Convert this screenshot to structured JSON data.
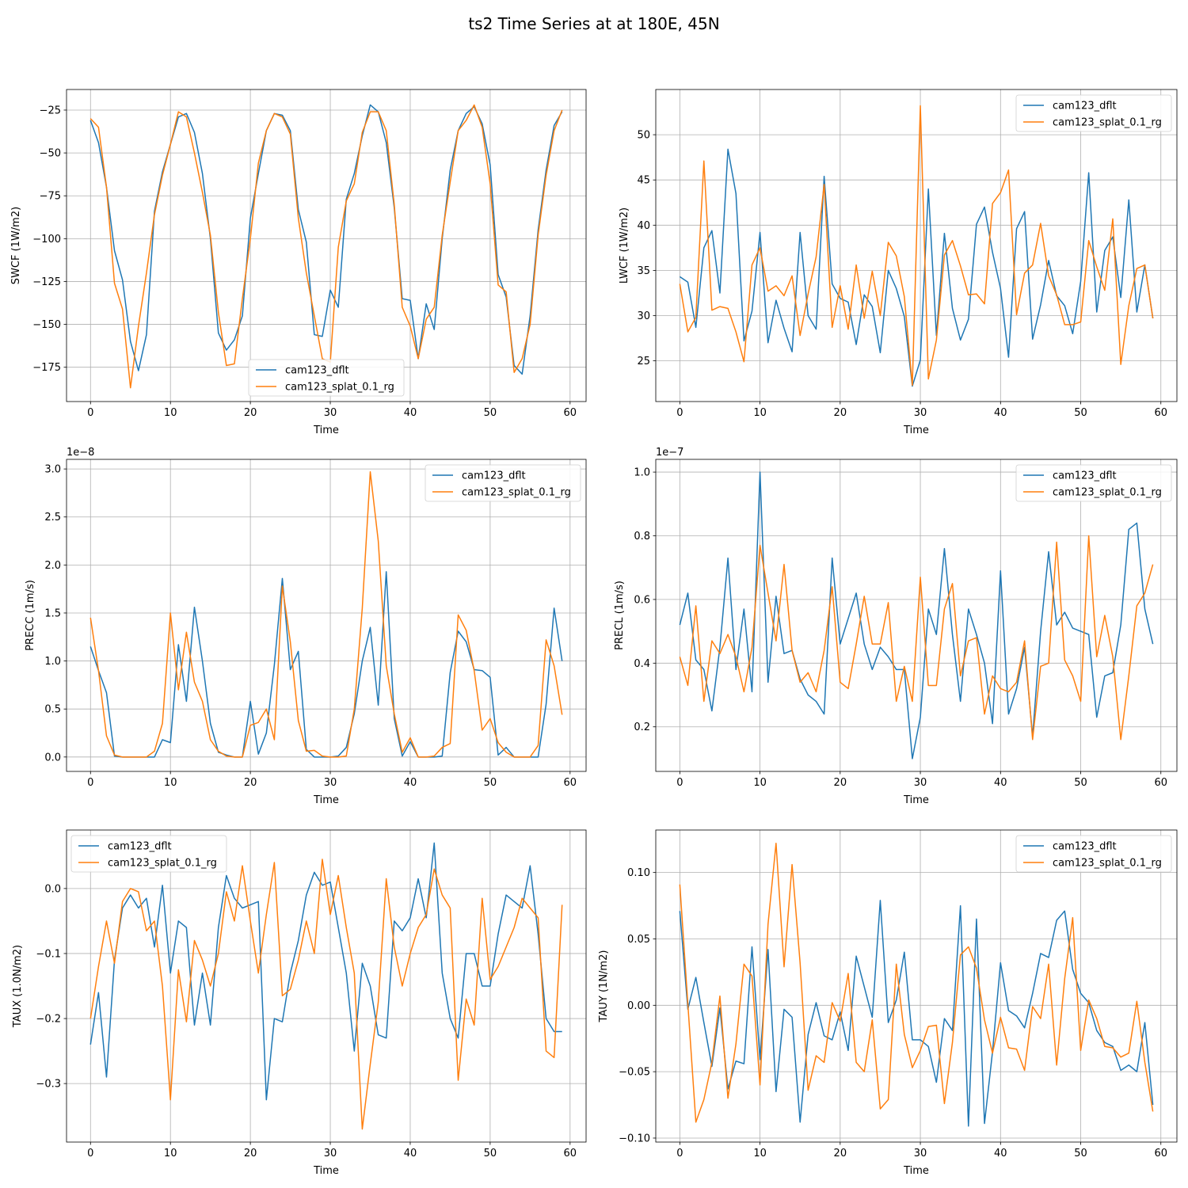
{
  "suptitle": "ts2 Time Series at at 180E, 45N",
  "colors": {
    "dflt": "#1f77b4",
    "splat": "#ff7f0e",
    "grid": "#b0b0b0"
  },
  "chart_data": [
    {
      "type": "line",
      "position": "top-left",
      "xlabel": "Time",
      "ylabel": "SWCF (1W/m2)",
      "xlim": [
        -3,
        62
      ],
      "ylim": [
        -195,
        -13
      ],
      "xticks": [
        0,
        10,
        20,
        30,
        40,
        50,
        60
      ],
      "xtick_labels": [
        "0",
        "10",
        "20",
        "30",
        "40",
        "50",
        "60"
      ],
      "yticks": [
        -175,
        -150,
        -125,
        -100,
        -75,
        -50,
        -25
      ],
      "ytick_labels": [
        "−175",
        "−150",
        "−125",
        "−100",
        "−75",
        "−50",
        "−25"
      ],
      "offset_text": "",
      "legend_loc": "lower-center",
      "grid": true,
      "series": [
        {
          "name": "cam123_dflt",
          "color": "#1f77b4",
          "values": [
            -31,
            -44,
            -70,
            -107,
            -124,
            -160,
            -177,
            -156,
            -84,
            -61,
            -45,
            -29,
            -27,
            -38,
            -62,
            -100,
            -155,
            -165,
            -159,
            -145,
            -88,
            -62,
            -37,
            -27,
            -28,
            -37,
            -83,
            -102,
            -156,
            -157,
            -130,
            -140,
            -77,
            -62,
            -40,
            -22,
            -26,
            -44,
            -82,
            -135,
            -136,
            -170,
            -138,
            -153,
            -100,
            -60,
            -37,
            -27,
            -23,
            -33,
            -57,
            -121,
            -134,
            -174,
            -179,
            -145,
            -95,
            -60,
            -34,
            -26
          ]
        },
        {
          "name": "cam123_splat_0.1_rg",
          "color": "#ff7f0e",
          "values": [
            -30,
            -35,
            -70,
            -126,
            -141,
            -187,
            -151,
            -120,
            -86,
            -63,
            -45,
            -26,
            -29,
            -50,
            -73,
            -98,
            -143,
            -174,
            -173,
            -135,
            -100,
            -56,
            -37,
            -27,
            -29,
            -39,
            -88,
            -120,
            -145,
            -170,
            -172,
            -105,
            -78,
            -68,
            -38,
            -26,
            -26,
            -37,
            -80,
            -140,
            -151,
            -170,
            -147,
            -140,
            -98,
            -67,
            -37,
            -31,
            -22,
            -35,
            -68,
            -127,
            -131,
            -178,
            -170,
            -150,
            -98,
            -63,
            -37,
            -25
          ]
        }
      ]
    },
    {
      "type": "line",
      "position": "top-right",
      "xlabel": "Time",
      "ylabel": "LWCF (1W/m2)",
      "xlim": [
        -3,
        62
      ],
      "ylim": [
        20.5,
        55
      ],
      "xticks": [
        0,
        10,
        20,
        30,
        40,
        50,
        60
      ],
      "xtick_labels": [
        "0",
        "10",
        "20",
        "30",
        "40",
        "50",
        "60"
      ],
      "yticks": [
        25,
        30,
        35,
        40,
        45,
        50
      ],
      "ytick_labels": [
        "25",
        "30",
        "35",
        "40",
        "45",
        "50"
      ],
      "offset_text": "",
      "legend_loc": "upper-right",
      "grid": true,
      "series": [
        {
          "name": "cam123_dflt",
          "color": "#1f77b4",
          "values": [
            34.3,
            33.7,
            28.7,
            37.5,
            39.4,
            32.5,
            48.4,
            43.5,
            27.2,
            30.5,
            39.2,
            27,
            31.7,
            28.6,
            26,
            39.2,
            30,
            28.5,
            45.4,
            33.5,
            31.9,
            31.5,
            26.8,
            32.3,
            31,
            25.9,
            35,
            33,
            29.9,
            22.2,
            25.1,
            44,
            27.8,
            39.1,
            30.8,
            27.3,
            29.6,
            40.1,
            42,
            37,
            33,
            25.4,
            39.6,
            41.5,
            27.4,
            31.2,
            36.1,
            32.2,
            31.1,
            28,
            33.8,
            45.8,
            30.4,
            37.2,
            38.7,
            32,
            42.8,
            30.4,
            35.6,
            29.7
          ]
        },
        {
          "name": "cam123_splat_0.1_rg",
          "color": "#ff7f0e",
          "values": [
            33.5,
            28.2,
            29.8,
            47.1,
            30.6,
            31,
            30.8,
            28.2,
            24.9,
            35.6,
            37.5,
            32.7,
            33.3,
            32.2,
            34.4,
            27.8,
            32.4,
            36.5,
            44.5,
            28.7,
            33.3,
            28.5,
            35.6,
            29.7,
            34.9,
            30,
            38.1,
            36.6,
            32.1,
            22.3,
            53.2,
            23,
            27.3,
            36.7,
            38.3,
            35.5,
            32.3,
            32.4,
            31.3,
            42.4,
            43.6,
            46.1,
            30.1,
            34.7,
            35.6,
            40.2,
            34.4,
            32.3,
            29,
            29,
            29.3,
            38.3,
            35.4,
            32.8,
            40.7,
            24.6,
            31.1,
            35.2,
            35.6,
            29.7
          ]
        }
      ]
    },
    {
      "type": "line",
      "position": "middle-left",
      "xlabel": "Time",
      "ylabel": "PRECC (1m/s)",
      "xlim": [
        -3,
        62
      ],
      "ylim": [
        -0.15,
        3.1
      ],
      "xticks": [
        0,
        10,
        20,
        30,
        40,
        50,
        60
      ],
      "xtick_labels": [
        "0",
        "10",
        "20",
        "30",
        "40",
        "50",
        "60"
      ],
      "yticks": [
        0,
        0.5,
        1.0,
        1.5,
        2.0,
        2.5,
        3.0
      ],
      "ytick_labels": [
        "0.0",
        "0.5",
        "1.0",
        "1.5",
        "2.0",
        "2.5",
        "3.0"
      ],
      "offset_text": "1e−8",
      "legend_loc": "upper-right",
      "grid": true,
      "series": [
        {
          "name": "cam123_dflt",
          "color": "#1f77b4",
          "values": [
            1.15,
            0.9,
            0.67,
            0.01,
            0,
            0,
            0,
            0,
            0,
            0.18,
            0.15,
            1.17,
            0.58,
            1.56,
            1.0,
            0.35,
            0.05,
            0.02,
            0,
            0,
            0.58,
            0.03,
            0.25,
            0.96,
            1.86,
            0.91,
            1.1,
            0.08,
            0,
            0,
            0,
            0.01,
            0.1,
            0.45,
            1.0,
            1.35,
            0.54,
            1.93,
            0.4,
            0.01,
            0.16,
            0,
            0,
            0,
            0.01,
            0.88,
            1.31,
            1.2,
            0.91,
            0.9,
            0.83,
            0.02,
            0.1,
            0,
            0,
            0,
            0,
            0.55,
            1.55,
            1.0
          ]
        },
        {
          "name": "cam123_splat_0.1_rg",
          "color": "#ff7f0e",
          "values": [
            1.45,
            0.9,
            0.22,
            0.02,
            0,
            0,
            0,
            0,
            0.06,
            0.35,
            1.5,
            0.7,
            1.3,
            0.78,
            0.58,
            0.18,
            0.06,
            0.01,
            0,
            0,
            0.33,
            0.36,
            0.5,
            0.18,
            1.78,
            1.2,
            0.38,
            0.06,
            0.07,
            0.01,
            0,
            0,
            0.01,
            0.5,
            1.55,
            2.97,
            2.25,
            0.95,
            0.45,
            0.05,
            0.2,
            0,
            0,
            0.01,
            0.1,
            0.14,
            1.48,
            1.32,
            0.9,
            0.28,
            0.4,
            0.15,
            0.05,
            0,
            0,
            0,
            0.12,
            1.22,
            0.95,
            0.44
          ]
        }
      ]
    },
    {
      "type": "line",
      "position": "middle-right",
      "xlabel": "Time",
      "ylabel": "PRECL (1m/s)",
      "xlim": [
        -3,
        62
      ],
      "ylim": [
        0.06,
        1.04
      ],
      "xticks": [
        0,
        10,
        20,
        30,
        40,
        50,
        60
      ],
      "xtick_labels": [
        "0",
        "10",
        "20",
        "30",
        "40",
        "50",
        "60"
      ],
      "yticks": [
        0.2,
        0.4,
        0.6,
        0.8,
        1.0
      ],
      "ytick_labels": [
        "0.2",
        "0.4",
        "0.6",
        "0.8",
        "1.0"
      ],
      "offset_text": "1e−7",
      "legend_loc": "upper-right",
      "grid": true,
      "series": [
        {
          "name": "cam123_dflt",
          "color": "#1f77b4",
          "values": [
            0.52,
            0.62,
            0.41,
            0.38,
            0.25,
            0.45,
            0.73,
            0.38,
            0.57,
            0.31,
            1.0,
            0.34,
            0.61,
            0.43,
            0.44,
            0.35,
            0.3,
            0.28,
            0.24,
            0.73,
            0.46,
            0.54,
            0.62,
            0.46,
            0.38,
            0.45,
            0.42,
            0.38,
            0.38,
            0.1,
            0.23,
            0.57,
            0.49,
            0.76,
            0.49,
            0.28,
            0.57,
            0.49,
            0.4,
            0.21,
            0.69,
            0.24,
            0.32,
            0.45,
            0.17,
            0.5,
            0.75,
            0.52,
            0.56,
            0.51,
            0.5,
            0.49,
            0.23,
            0.36,
            0.37,
            0.52,
            0.82,
            0.84,
            0.57,
            0.46
          ]
        },
        {
          "name": "cam123_splat_0.1_rg",
          "color": "#ff7f0e",
          "values": [
            0.42,
            0.33,
            0.58,
            0.28,
            0.47,
            0.43,
            0.49,
            0.42,
            0.31,
            0.45,
            0.77,
            0.62,
            0.47,
            0.71,
            0.44,
            0.34,
            0.37,
            0.31,
            0.44,
            0.64,
            0.34,
            0.32,
            0.46,
            0.61,
            0.46,
            0.46,
            0.59,
            0.28,
            0.39,
            0.28,
            0.67,
            0.33,
            0.33,
            0.57,
            0.65,
            0.36,
            0.47,
            0.48,
            0.24,
            0.36,
            0.32,
            0.31,
            0.34,
            0.47,
            0.16,
            0.39,
            0.4,
            0.78,
            0.41,
            0.36,
            0.28,
            0.8,
            0.42,
            0.55,
            0.42,
            0.16,
            0.36,
            0.58,
            0.62,
            0.71
          ]
        }
      ]
    },
    {
      "type": "line",
      "position": "bottom-left",
      "xlabel": "Time",
      "ylabel": "TAUX (1.0N/m2)",
      "xlim": [
        -3,
        62
      ],
      "ylim": [
        -0.39,
        0.09
      ],
      "xticks": [
        0,
        10,
        20,
        30,
        40,
        50,
        60
      ],
      "xtick_labels": [
        "0",
        "10",
        "20",
        "30",
        "40",
        "50",
        "60"
      ],
      "yticks": [
        -0.3,
        -0.2,
        -0.1,
        0.0
      ],
      "ytick_labels": [
        "−0.3",
        "−0.2",
        "−0.1",
        "0.0"
      ],
      "offset_text": "",
      "legend_loc": "upper-left",
      "grid": true,
      "series": [
        {
          "name": "cam123_dflt",
          "color": "#1f77b4",
          "values": [
            -0.24,
            -0.16,
            -0.29,
            -0.11,
            -0.03,
            -0.01,
            -0.03,
            -0.015,
            -0.09,
            0.005,
            -0.13,
            -0.05,
            -0.06,
            -0.21,
            -0.13,
            -0.21,
            -0.06,
            0.02,
            -0.015,
            -0.03,
            -0.025,
            -0.02,
            -0.325,
            -0.2,
            -0.205,
            -0.13,
            -0.08,
            -0.01,
            0.025,
            0.005,
            0.01,
            -0.06,
            -0.13,
            -0.25,
            -0.115,
            -0.15,
            -0.225,
            -0.23,
            -0.05,
            -0.065,
            -0.045,
            0.015,
            -0.045,
            0.07,
            -0.13,
            -0.2,
            -0.23,
            -0.1,
            -0.1,
            -0.15,
            -0.15,
            -0.07,
            -0.01,
            -0.02,
            -0.03,
            0.035,
            -0.07,
            -0.2,
            -0.22,
            -0.22
          ]
        },
        {
          "name": "cam123_splat_0.1_rg",
          "color": "#ff7f0e",
          "values": [
            -0.2,
            -0.12,
            -0.05,
            -0.115,
            -0.02,
            0,
            -0.005,
            -0.065,
            -0.05,
            -0.15,
            -0.325,
            -0.125,
            -0.205,
            -0.08,
            -0.11,
            -0.15,
            -0.1,
            -0.005,
            -0.05,
            0.035,
            -0.05,
            -0.13,
            -0.04,
            0.04,
            -0.165,
            -0.155,
            -0.11,
            -0.05,
            -0.1,
            0.045,
            -0.04,
            0.02,
            -0.06,
            -0.13,
            -0.37,
            -0.27,
            -0.175,
            0.015,
            -0.09,
            -0.15,
            -0.1,
            -0.06,
            -0.04,
            0.03,
            -0.01,
            -0.03,
            -0.295,
            -0.17,
            -0.21,
            -0.015,
            -0.14,
            -0.12,
            -0.09,
            -0.06,
            -0.015,
            -0.03,
            -0.045,
            -0.25,
            -0.26,
            -0.025
          ]
        }
      ]
    },
    {
      "type": "line",
      "position": "bottom-right",
      "xlabel": "Time",
      "ylabel": "TAUY (1N/m2)",
      "xlim": [
        -3,
        62
      ],
      "ylim": [
        -0.103,
        0.132
      ],
      "xticks": [
        0,
        10,
        20,
        30,
        40,
        50,
        60
      ],
      "xtick_labels": [
        "0",
        "10",
        "20",
        "30",
        "40",
        "50",
        "60"
      ],
      "yticks": [
        -0.1,
        -0.05,
        0.0,
        0.05,
        0.1
      ],
      "ytick_labels": [
        "−0.10",
        "−0.05",
        "0.00",
        "0.05",
        "0.10"
      ],
      "offset_text": "",
      "legend_loc": "upper-right",
      "grid": true,
      "series": [
        {
          "name": "cam123_dflt",
          "color": "#1f77b4",
          "values": [
            0.071,
            -0.003,
            0.021,
            -0.013,
            -0.046,
            -0.002,
            -0.063,
            -0.042,
            -0.044,
            0.044,
            -0.041,
            0.042,
            -0.065,
            -0.003,
            -0.009,
            -0.088,
            -0.022,
            0.002,
            -0.023,
            -0.026,
            -0.005,
            -0.034,
            0.037,
            0.014,
            -0.009,
            0.079,
            -0.013,
            0.004,
            0.04,
            -0.026,
            -0.026,
            -0.031,
            -0.058,
            -0.01,
            -0.019,
            0.075,
            -0.091,
            0.065,
            -0.089,
            -0.035,
            0.032,
            -0.004,
            -0.008,
            -0.017,
            0.009,
            0.039,
            0.036,
            0.064,
            0.071,
            0.027,
            0.009,
            0.002,
            -0.019,
            -0.028,
            -0.031,
            -0.049,
            -0.045,
            -0.05,
            -0.013,
            -0.075
          ]
        },
        {
          "name": "cam123_splat_0.1_rg",
          "color": "#ff7f0e",
          "values": [
            0.091,
            0.001,
            -0.088,
            -0.071,
            -0.043,
            0.007,
            -0.07,
            -0.029,
            0.031,
            0.022,
            -0.06,
            0.061,
            0.122,
            0.029,
            0.106,
            0.032,
            -0.064,
            -0.038,
            -0.043,
            0.002,
            -0.012,
            0.024,
            -0.043,
            -0.05,
            -0.011,
            -0.078,
            -0.071,
            0.031,
            -0.022,
            -0.047,
            -0.034,
            -0.016,
            -0.015,
            -0.074,
            -0.028,
            0.038,
            0.044,
            0.028,
            -0.011,
            -0.036,
            -0.009,
            -0.032,
            -0.033,
            -0.049,
            -0.001,
            -0.01,
            0.031,
            -0.045,
            0.02,
            0.066,
            -0.034,
            0.004,
            -0.01,
            -0.031,
            -0.032,
            -0.039,
            -0.036,
            0.003,
            -0.043,
            -0.08
          ]
        }
      ]
    }
  ]
}
